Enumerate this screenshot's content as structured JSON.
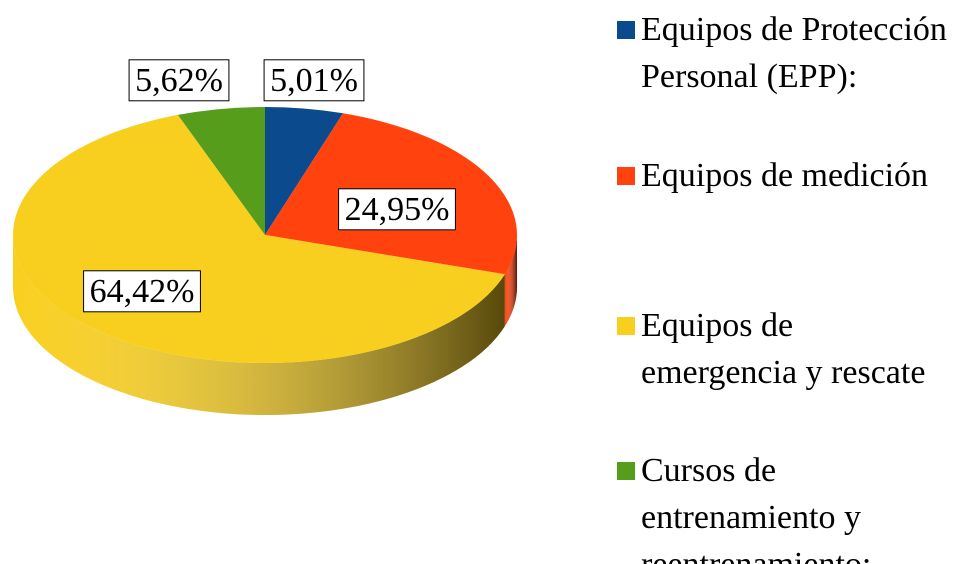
{
  "chart_data": {
    "type": "pie",
    "categories": [
      "Equipos de Protección Personal (EPP):",
      "Equipos de medición",
      "Equipos de emergencia y rescate",
      "Cursos de entrenamiento y reentrenamiento:"
    ],
    "values": [
      5.01,
      24.95,
      64.42,
      5.62
    ],
    "value_labels": [
      "5,01%",
      "24,95%",
      "64,42%",
      "5,62%"
    ],
    "colors": [
      "#0b4a8c",
      "#ff420e",
      "#f9cf1f",
      "#579d1c"
    ]
  }
}
